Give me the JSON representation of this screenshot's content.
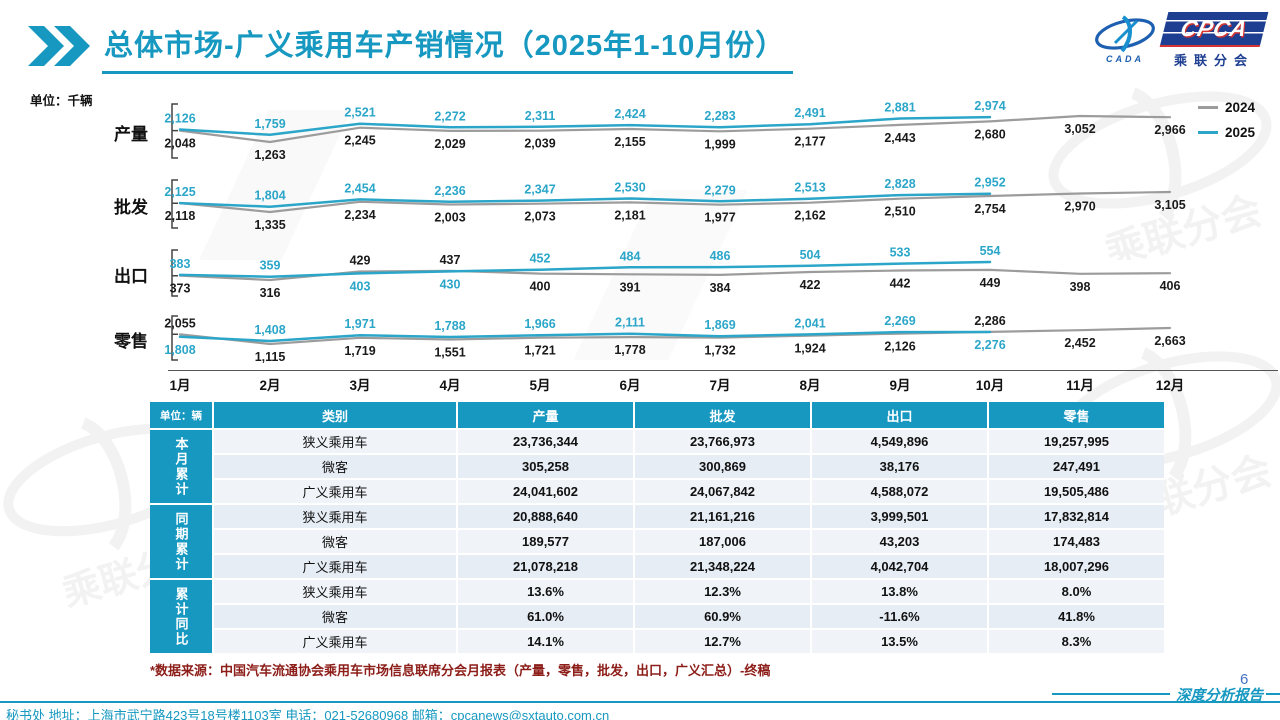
{
  "header": {
    "title": "总体市场-广义乘用车产销情况（2025年1-10月份）",
    "logo": {
      "cpca": "CPCA",
      "cada": "CADA",
      "subtitle": "乘联分会"
    }
  },
  "chart_data": {
    "type": "line",
    "unit_label": "单位：千辆",
    "x_labels": [
      "1月",
      "2月",
      "3月",
      "4月",
      "5月",
      "6月",
      "7月",
      "8月",
      "9月",
      "10月",
      "11月",
      "12月"
    ],
    "legend": [
      {
        "name": "2024",
        "color": "#9c9c9c"
      },
      {
        "name": "2025",
        "color": "#2ba6c9"
      }
    ],
    "rows": [
      {
        "key": "production",
        "label": "产量",
        "series_2024": [
          2048,
          1263,
          2245,
          2029,
          2039,
          2155,
          1999,
          2177,
          2443,
          2680,
          3052,
          2966
        ],
        "series_2025": [
          2126,
          1759,
          2521,
          2272,
          2311,
          2424,
          2283,
          2491,
          2881,
          2974
        ]
      },
      {
        "key": "wholesale",
        "label": "批发",
        "series_2024": [
          2118,
          1335,
          2234,
          2003,
          2073,
          2181,
          1977,
          2162,
          2510,
          2754,
          2970,
          3105
        ],
        "series_2025": [
          2125,
          1804,
          2454,
          2236,
          2347,
          2530,
          2279,
          2513,
          2828,
          2952
        ]
      },
      {
        "key": "export",
        "label": "出口",
        "series_2024": [
          373,
          316,
          429,
          437,
          400,
          391,
          384,
          422,
          442,
          449,
          398,
          406
        ],
        "series_2025": [
          383,
          359,
          403,
          430,
          452,
          484,
          486,
          504,
          533,
          554
        ]
      },
      {
        "key": "retail",
        "label": "零售",
        "series_2024": [
          2055,
          1115,
          1719,
          1551,
          1721,
          1778,
          1732,
          1924,
          2126,
          2286,
          2452,
          2663
        ],
        "series_2025": [
          1808,
          1408,
          1971,
          1788,
          1966,
          2111,
          1869,
          2041,
          2269,
          2276
        ]
      }
    ]
  },
  "table": {
    "unit_header": "单位：辆",
    "columns": [
      "类别",
      "产量",
      "批发",
      "出口",
      "零售"
    ],
    "groups": [
      {
        "label": "本月累计",
        "rows": [
          [
            "狭义乘用车",
            "23,736,344",
            "23,766,973",
            "4,549,896",
            "19,257,995"
          ],
          [
            "微客",
            "305,258",
            "300,869",
            "38,176",
            "247,491"
          ],
          [
            "广义乘用车",
            "24,041,602",
            "24,067,842",
            "4,588,072",
            "19,505,486"
          ]
        ]
      },
      {
        "label": "同期累计",
        "rows": [
          [
            "狭义乘用车",
            "20,888,640",
            "21,161,216",
            "3,999,501",
            "17,832,814"
          ],
          [
            "微客",
            "189,577",
            "187,006",
            "43,203",
            "174,483"
          ],
          [
            "广义乘用车",
            "21,078,218",
            "21,348,224",
            "4,042,704",
            "18,007,296"
          ]
        ]
      },
      {
        "label": "累计同比",
        "rows": [
          [
            "狭义乘用车",
            "13.6%",
            "12.3%",
            "13.8%",
            "8.0%"
          ],
          [
            "微客",
            "61.0%",
            "60.9%",
            "-11.6%",
            "41.8%"
          ],
          [
            "广义乘用车",
            "14.1%",
            "12.7%",
            "13.5%",
            "8.3%"
          ]
        ]
      }
    ]
  },
  "footnote": "*数据来源：中国汽车流通协会乘用车市场信息联席分会月报表（产量，零售，批发，出口，广义汇总）-终稿",
  "footer": {
    "contact": "秘书处  地址：上海市武宁路423号18号楼1103室 电话：021-52680968  邮箱：cpcanews@sxtauto.com.cn",
    "report_label": "深度分析报告",
    "page_number": "6"
  },
  "watermark": {
    "text": "乘联分会"
  },
  "colors": {
    "accent_teal": "#1798c0",
    "line_2025": "#2ba6c9",
    "line_2024": "#9c9c9c",
    "label_2024": "#1a1a1a",
    "table_row_light": "#f0f4f9",
    "table_row_dark": "#e7edf5",
    "footnote_red": "#8c1d18",
    "logo_navy": "#1d3e91",
    "logo_red": "#d23333",
    "page_number_blue": "#4472c4"
  }
}
